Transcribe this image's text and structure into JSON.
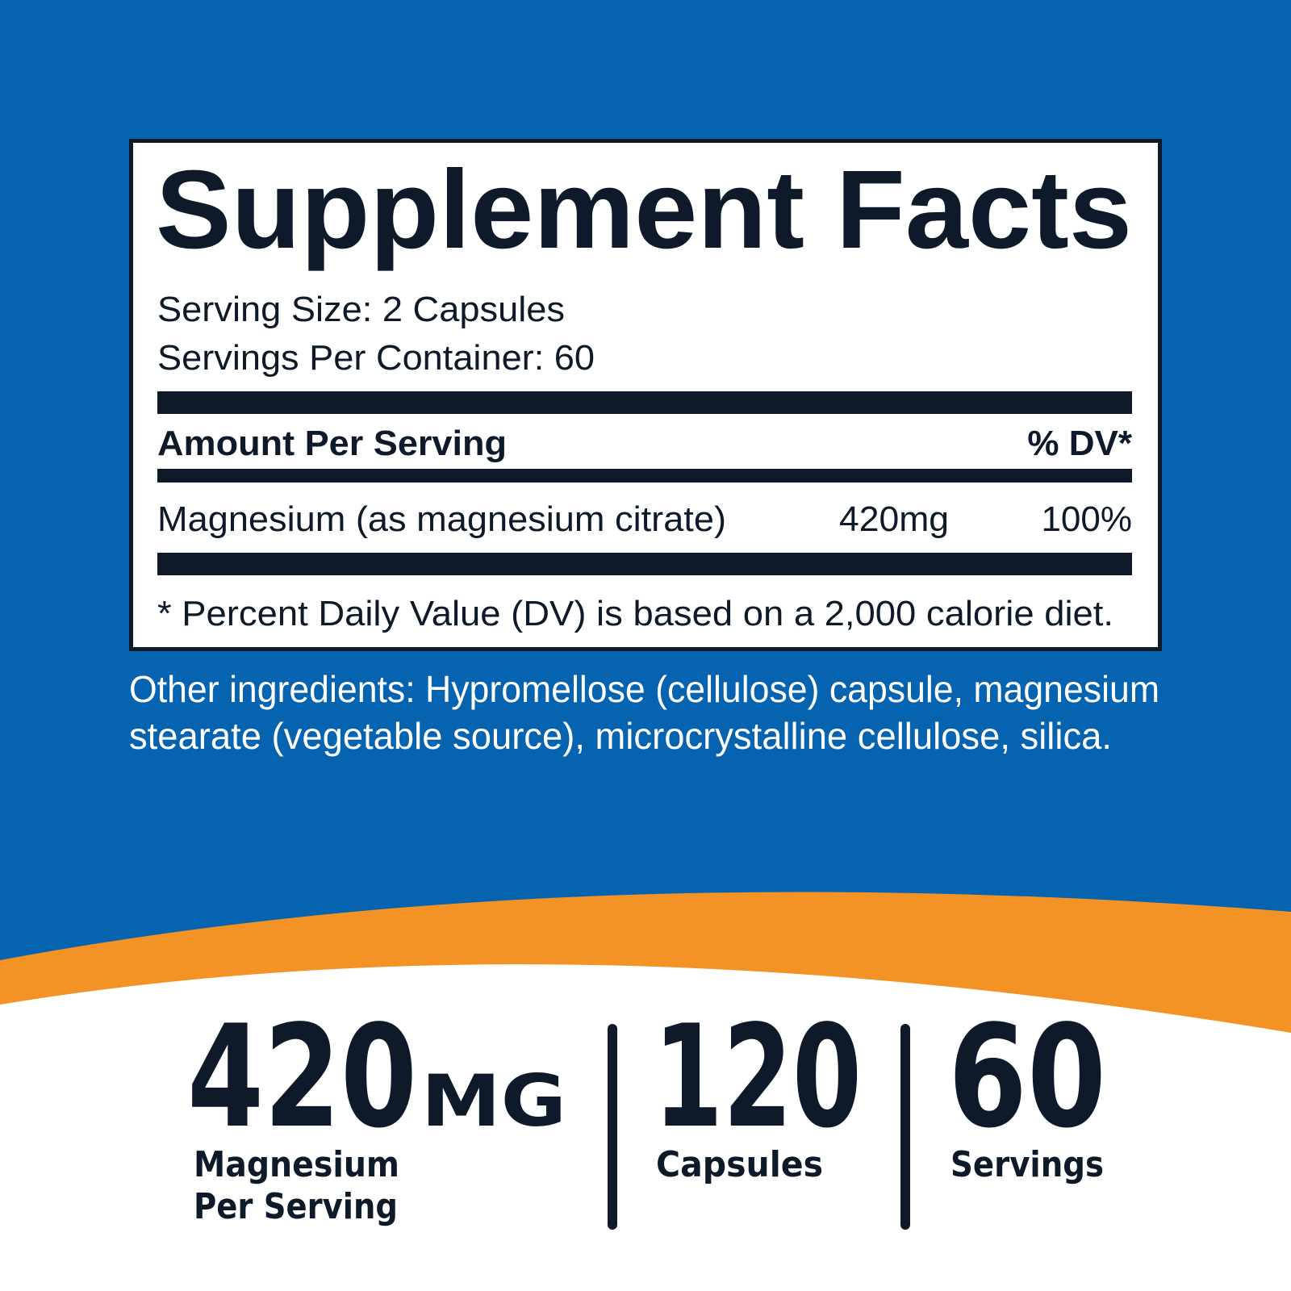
{
  "panel": {
    "title": "Supplement Facts",
    "serving_size": "Serving Size: 2 Capsules",
    "servings_per_container": "Servings Per Container: 60",
    "header": {
      "amount": "Amount Per Serving",
      "dv": "% DV*"
    },
    "rows": [
      [
        "Magnesium (as magnesium citrate)",
        "420mg",
        "100%"
      ]
    ],
    "footnote": "* Percent Daily Value (DV) is based on a 2,000 calorie diet."
  },
  "other_ingredients": [
    "Other ingredients: Hypromellose (cellulose) capsule, magnesium",
    "stearate (vegetable source), microcrystalline cellulose, silica."
  ],
  "stats": [
    {
      "value": "420",
      "unit": "MG",
      "label": [
        "Magnesium",
        "Per Serving"
      ]
    },
    {
      "value": "120",
      "label": [
        "Capsules"
      ]
    },
    {
      "value": "60",
      "label": [
        "Servings"
      ]
    }
  ]
}
